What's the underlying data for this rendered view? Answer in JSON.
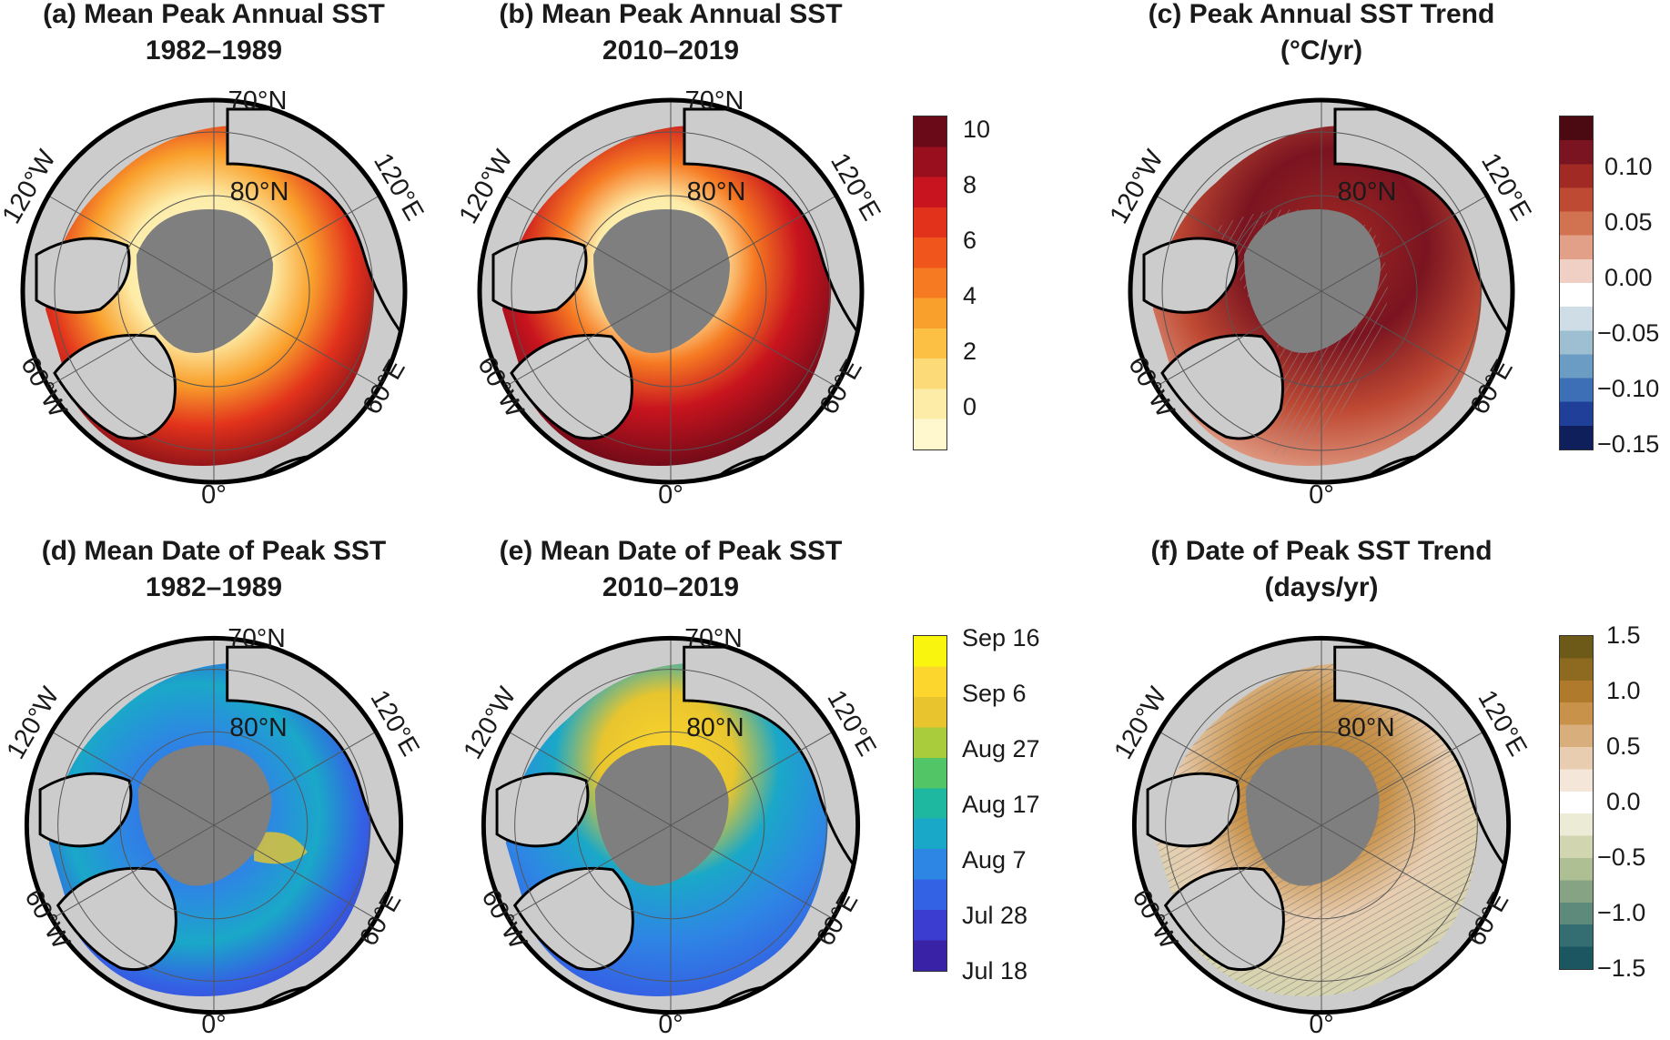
{
  "panels": {
    "a": {
      "title1": "(a) Mean Peak Annual SST",
      "title2": "1982–1989"
    },
    "b": {
      "title1": "(b) Mean Peak Annual SST",
      "title2": "2010–2019"
    },
    "c": {
      "title1": "(c) Peak Annual SST Trend",
      "title2": "(°C/yr)"
    },
    "d": {
      "title1": "(d) Mean Date of Peak SST",
      "title2": "1982–1989"
    },
    "e": {
      "title1": "(e) Mean Date of Peak SST",
      "title2": "2010–2019"
    },
    "f": {
      "title1": "(f) Date of Peak SST Trend",
      "title2": "(days/yr)"
    }
  },
  "map_labels": {
    "lon_120w": "120°W",
    "lat_70n": "70°N",
    "lon_120e": "120°E",
    "lat_80n": "80°N",
    "lon_60w": "60°W",
    "lon_60e": "60°E",
    "lon_0": "0°"
  },
  "colorbars": {
    "sst": {
      "ticks": [
        "10",
        "8",
        "6",
        "4",
        "2",
        "0"
      ],
      "colors": [
        "#6a0a18",
        "#9a0f1e",
        "#c8141e",
        "#e2321c",
        "#f0561c",
        "#f67a22",
        "#f9a02c",
        "#fbc044",
        "#fcda78",
        "#fdeca8",
        "#fff8cf"
      ]
    },
    "sst_trend": {
      "ticks": [
        "0.10",
        "0.05",
        "0.00",
        "−0.05",
        "−0.10",
        "−0.15"
      ],
      "colors": [
        "#4b0a12",
        "#7a1420",
        "#a12a24",
        "#bf4a34",
        "#d17350",
        "#e2a088",
        "#f0d0c4",
        "#ffffff",
        "#cfdde6",
        "#9ebfd2",
        "#6b9cc4",
        "#3d6fb6",
        "#1f3f99",
        "#0e1f5c"
      ]
    },
    "date": {
      "ticks": [
        "Sep 16",
        "Sep 6",
        "Aug 27",
        "Aug 17",
        "Aug 7",
        "Jul 28",
        "Jul 18"
      ],
      "colors": [
        "#f9f50e",
        "#fcd62c",
        "#e8c52e",
        "#a8cc3c",
        "#52c566",
        "#1eb7a0",
        "#1aa8c8",
        "#2e86e4",
        "#3462e4",
        "#3b3cd0",
        "#3a22a6"
      ]
    },
    "date_trend": {
      "ticks": [
        "1.5",
        "1.0",
        "0.5",
        "0.0",
        "−0.5",
        "−1.0",
        "−1.5"
      ],
      "colors": [
        "#6e5a18",
        "#8e6a20",
        "#b07a2c",
        "#c8924a",
        "#d8ae7c",
        "#e8cdb0",
        "#f4e6d8",
        "#ffffff",
        "#ecebd6",
        "#d2d6b0",
        "#aebf94",
        "#86a484",
        "#5e8a7c",
        "#356e72",
        "#1c5660"
      ]
    }
  },
  "colors": {
    "land": "#cccccc",
    "ice": "#7f7f7f",
    "coast": "#000000",
    "grid": "#555555"
  }
}
